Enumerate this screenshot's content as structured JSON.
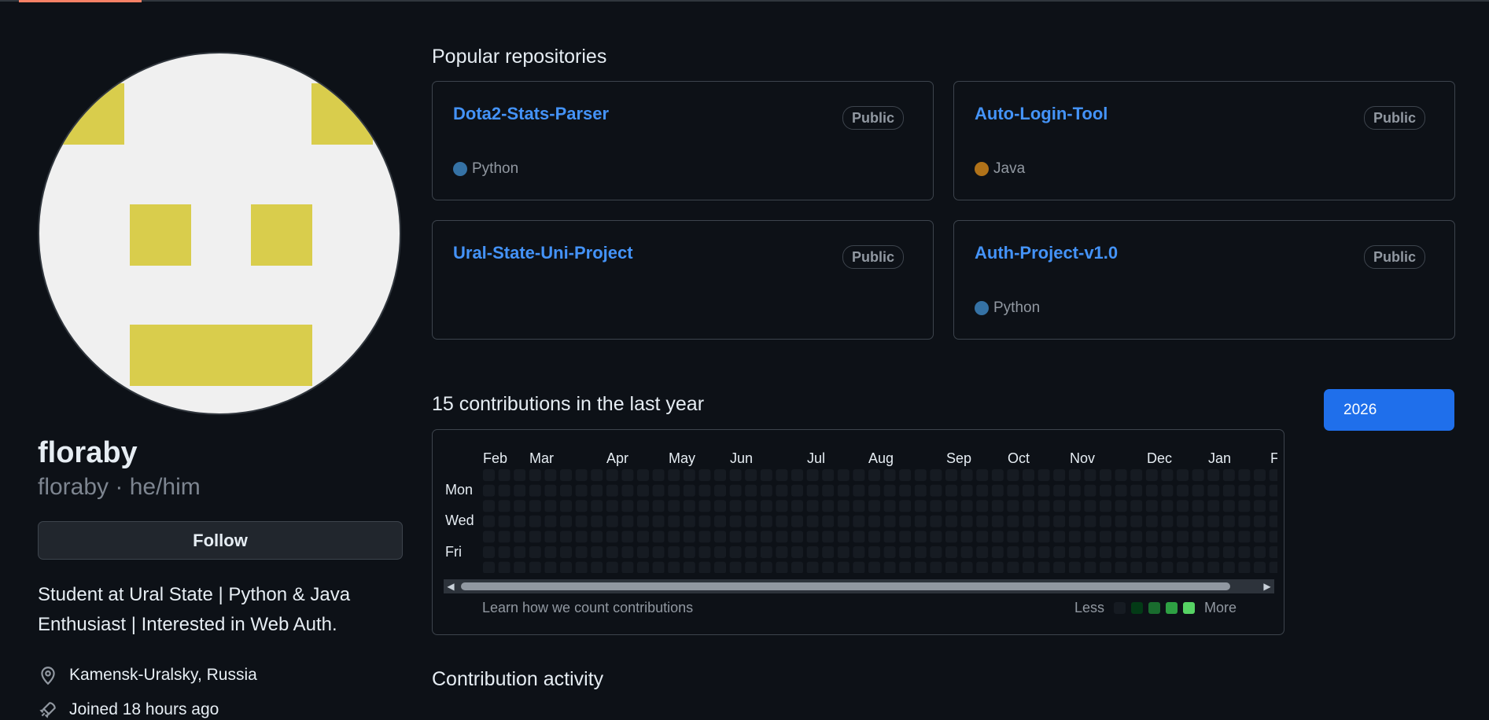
{
  "profile": {
    "username": "floraby",
    "subtitle": "floraby · he/him",
    "follow_label": "Follow",
    "bio": "Student at Ural State | Python & Java Enthusiast | Interested in Web Auth.",
    "location": "Kamensk-Uralsky, Russia",
    "joined": "Joined 18 hours ago"
  },
  "repos_heading": "Popular repositories",
  "repos": [
    {
      "name": "Dota2-Stats-Parser",
      "visibility": "Public",
      "language": "Python",
      "language_color": "#3572A5"
    },
    {
      "name": "Auto-Login-Tool",
      "visibility": "Public",
      "language": "Java",
      "language_color": "#b07219"
    },
    {
      "name": "Ural-State-Uni-Project",
      "visibility": "Public",
      "language": "",
      "language_color": ""
    },
    {
      "name": "Auth-Project-v1.0",
      "visibility": "Public",
      "language": "Python",
      "language_color": "#3572A5"
    }
  ],
  "contributions": {
    "heading": "15 contributions in the last year",
    "year_button": "2026",
    "months": [
      "Feb",
      "Mar",
      "Apr",
      "May",
      "Jun",
      "Jul",
      "Aug",
      "Sep",
      "Oct",
      "Nov",
      "Dec",
      "Jan",
      "F"
    ],
    "days": [
      "Mon",
      "Wed",
      "Fri"
    ],
    "learn_link": "Learn how we count contributions",
    "legend_less": "Less",
    "legend_more": "More",
    "legend_colors": [
      "#161b22",
      "#033a16",
      "#196c2e",
      "#2ea043",
      "#56d364"
    ]
  },
  "activity_heading": "Contribution activity",
  "colors": {
    "accent": "#4493f8",
    "button_primary": "#1f6feb",
    "avatar_yellow": "#d9cd4c"
  }
}
